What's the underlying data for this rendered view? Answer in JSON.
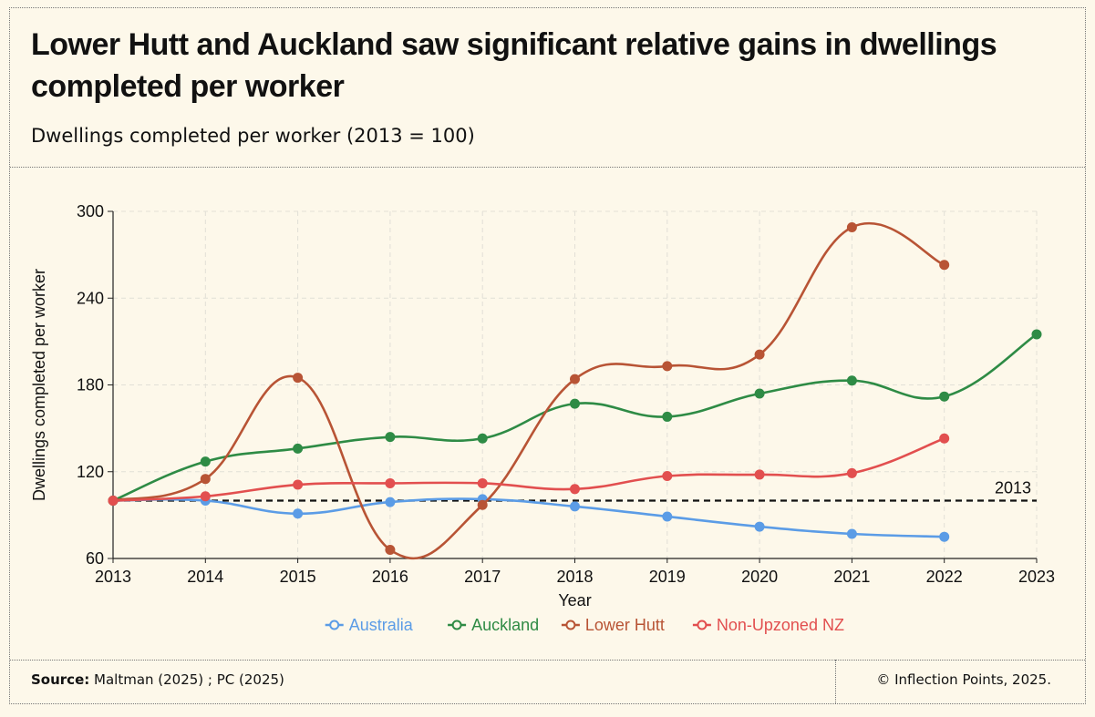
{
  "header": {
    "title": "Lower Hutt and Auckland saw significant relative gains in dwellings completed per worker",
    "subtitle": "Dwellings completed per worker (2013 = 100)"
  },
  "footer": {
    "source_label": "Source:",
    "source_text": " Maltman (2025) ; PC (2025)",
    "copyright": "© Inflection Points, 2025."
  },
  "chart_data": {
    "type": "line",
    "title": "Lower Hutt and Auckland saw significant relative gains in dwellings completed per worker",
    "subtitle": "Dwellings completed per worker (2013 = 100)",
    "xlabel": "Year",
    "ylabel": "Dwellings completed per worker",
    "x": [
      2013,
      2014,
      2015,
      2016,
      2017,
      2018,
      2019,
      2020,
      2021,
      2022,
      2023
    ],
    "x_ticks": [
      "2013",
      "2014",
      "2015",
      "2016",
      "2017",
      "2018",
      "2019",
      "2020",
      "2021",
      "2022",
      "2023"
    ],
    "ylim": [
      60,
      300
    ],
    "y_ticks": [
      "60",
      "120",
      "180",
      "240",
      "300"
    ],
    "y_tick_values": [
      60,
      120,
      180,
      240,
      300
    ],
    "grid": true,
    "reference_line": {
      "value": 100,
      "label": "2013",
      "style": "dashed"
    },
    "legend_position": "bottom",
    "series": [
      {
        "name": "Australia",
        "color": "#5b9ce6",
        "values": [
          100,
          100,
          91,
          99,
          101,
          96,
          89,
          82,
          77,
          75,
          null
        ]
      },
      {
        "name": "Auckland",
        "color": "#2e8b45",
        "values": [
          100,
          127,
          136,
          144,
          143,
          167,
          158,
          174,
          183,
          172,
          215
        ]
      },
      {
        "name": "Lower Hutt",
        "color": "#b85435",
        "values": [
          100,
          115,
          185,
          66,
          97,
          184,
          193,
          201,
          289,
          263,
          null
        ]
      },
      {
        "name": "Non-Upzoned NZ",
        "color": "#e24f4f",
        "values": [
          100,
          103,
          111,
          112,
          112,
          108,
          117,
          118,
          119,
          143,
          null
        ]
      }
    ]
  }
}
